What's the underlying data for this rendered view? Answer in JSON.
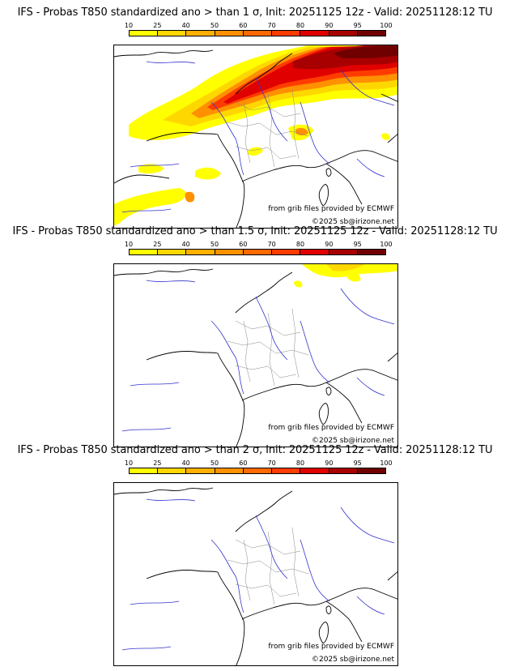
{
  "colorbar": {
    "ticks": [
      "10",
      "25",
      "40",
      "50",
      "60",
      "70",
      "80",
      "90",
      "95",
      "100"
    ],
    "colors": [
      "#ffff00",
      "#ffd700",
      "#ffb000",
      "#ff9000",
      "#ff6a00",
      "#ff3c00",
      "#e00000",
      "#a80000",
      "#700000"
    ]
  },
  "panels": [
    {
      "title": "IFS - Probas T850  standardized ano > than 1 σ, Init: 20251125 12z - Valid: 20251128:12 TU",
      "source": "from grib files provided by ECMWF",
      "copyright": "©2025 sb@irizone.net",
      "intensity": "high"
    },
    {
      "title": "IFS - Probas T850  standardized ano > than 1.5 σ, Init: 20251125 12z - Valid: 20251128:12 TU",
      "source": "from grib files provided by ECMWF",
      "copyright": "©2025 sb@irizone.net",
      "intensity": "low"
    },
    {
      "title": "IFS - Probas T850  standardized ano > than 2 σ, Init: 20251125 12z - Valid: 20251128:12 TU",
      "source": "from grib files provided by ECMWF",
      "copyright": "©2025 sb@irizone.net",
      "intensity": "none"
    }
  ]
}
